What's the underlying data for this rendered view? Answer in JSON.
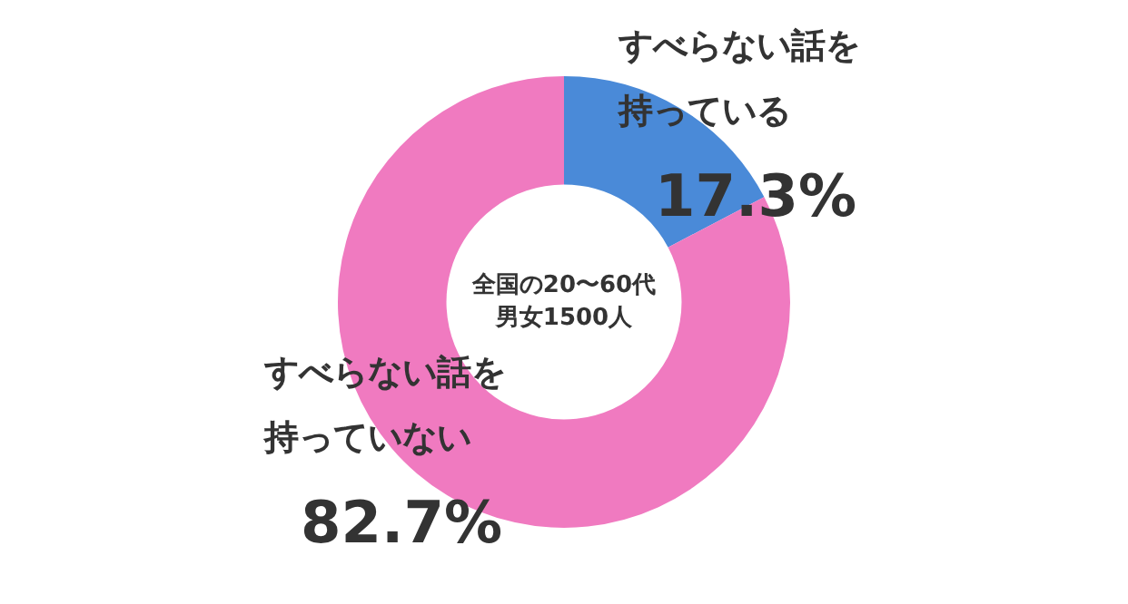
{
  "chart_data": {
    "type": "donut",
    "categories": [
      "すべらない話を持っている",
      "すべらない話を持っていない"
    ],
    "values": [
      17.3,
      82.7
    ],
    "colors": [
      "#4a8ad8",
      "#f07ac0"
    ],
    "value_labels": [
      "17.3%",
      "82.7%"
    ],
    "annotations": [
      "全国の20〜60代",
      "男女1500人"
    ],
    "legend": false
  }
}
